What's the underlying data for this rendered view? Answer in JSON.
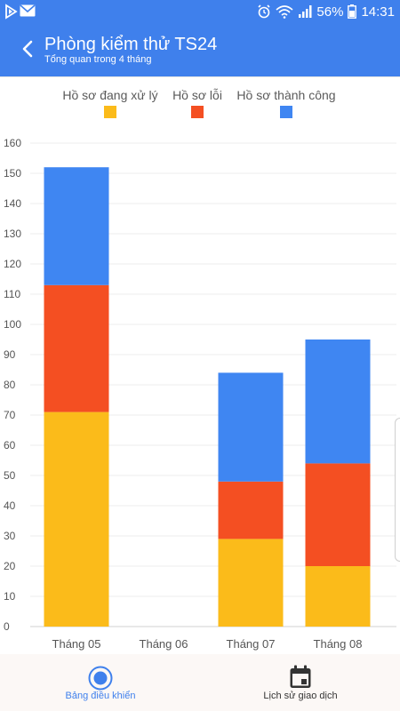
{
  "status_bar": {
    "battery_percent": "56%",
    "time": "14:31",
    "icons": [
      "play-store-icon",
      "mail-icon",
      "alarm-icon",
      "wifi-icon",
      "signal-icon",
      "battery-icon"
    ]
  },
  "header": {
    "title": "Phòng kiểm thử TS24",
    "subtitle": "Tổng quan trong 4 tháng",
    "back_icon": "chevron-left-icon"
  },
  "chart_data": {
    "type": "bar",
    "stacked": true,
    "categories": [
      "Tháng 05",
      "Tháng 06",
      "Tháng 07",
      "Tháng 08"
    ],
    "series": [
      {
        "name": "Hồ sơ đang xử lý",
        "color": "#fbbb1a",
        "values": [
          71,
          0,
          29,
          20
        ]
      },
      {
        "name": "Hồ sơ lỗi",
        "color": "#f44f22",
        "values": [
          42,
          0,
          19,
          34
        ]
      },
      {
        "name": "Hồ sơ thành công",
        "color": "#3f86f2",
        "values": [
          39,
          0,
          36,
          41
        ]
      }
    ],
    "ylim": [
      0,
      160
    ],
    "yticks": [
      0,
      10,
      20,
      30,
      40,
      50,
      60,
      70,
      80,
      90,
      100,
      110,
      120,
      130,
      140,
      150,
      160
    ],
    "grid": true,
    "legend_position": "top"
  },
  "bottom_nav": {
    "items": [
      {
        "label": "Bảng điều khiển",
        "icon": "dashboard-icon",
        "active": true,
        "color": "#3f80ec"
      },
      {
        "label": "Lịch sử giao dịch",
        "icon": "calendar-icon",
        "active": false,
        "color": "#333333"
      }
    ]
  }
}
